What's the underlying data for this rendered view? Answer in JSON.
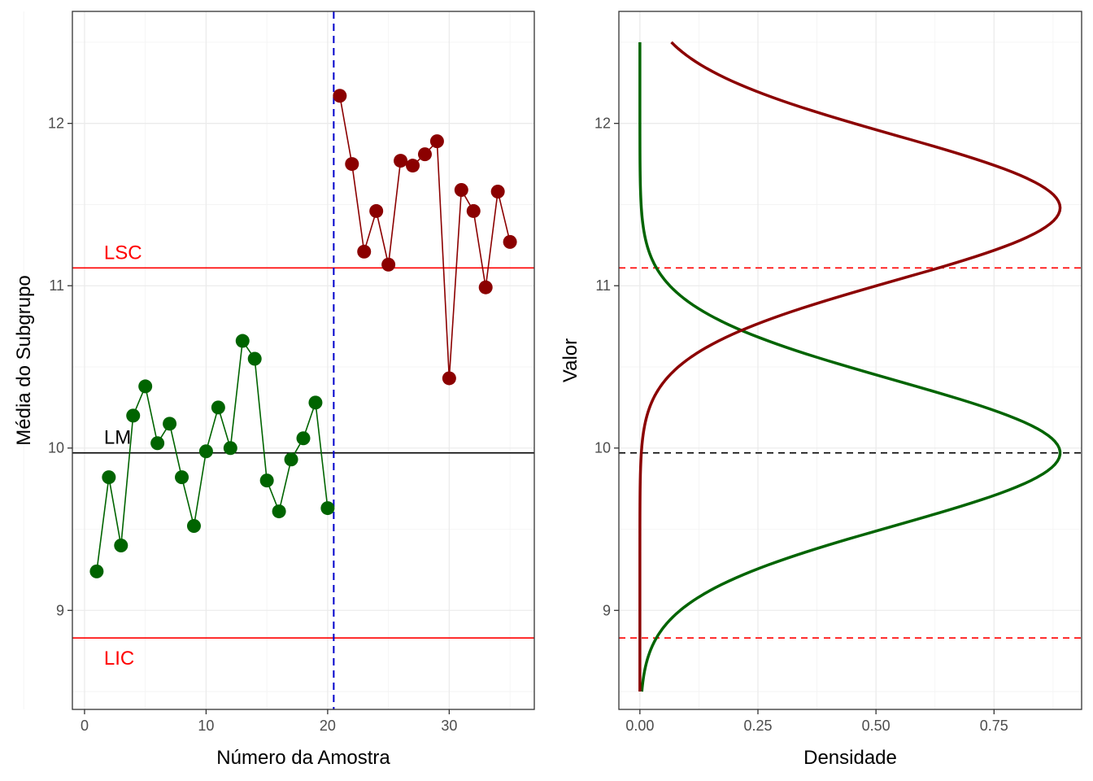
{
  "colors": {
    "phase1": "#006400",
    "phase2": "#8B0000",
    "limits": "#FF0000",
    "center": "#000000",
    "shift_line": "#0000CC"
  },
  "chart_data": [
    {
      "type": "line",
      "title": "",
      "xlabel": "Número da Amostra",
      "ylabel": "Média do Subgrupo",
      "xlim": [
        -1,
        37
      ],
      "ylim": [
        8.39,
        12.69
      ],
      "xticks": [
        0,
        10,
        20,
        30
      ],
      "yticks": [
        9,
        10,
        11,
        12
      ],
      "grid": true,
      "hlines": [
        {
          "label": "LSC",
          "value": 11.11,
          "color": "#FF0000"
        },
        {
          "label": "LM",
          "value": 9.97,
          "color": "#000000"
        },
        {
          "label": "LIC",
          "value": 8.83,
          "color": "#FF0000"
        }
      ],
      "vline": {
        "value": 20.5,
        "style": "dashed",
        "color": "#0000CC"
      },
      "series": [
        {
          "x": [
            1,
            2,
            3,
            4,
            5,
            6,
            7,
            8,
            9,
            10,
            11,
            12,
            13,
            14,
            15,
            16,
            17,
            18,
            19,
            20
          ],
          "values": [
            9.24,
            9.82,
            9.4,
            10.2,
            10.38,
            10.03,
            10.15,
            9.82,
            9.52,
            9.98,
            10.25,
            10.0,
            10.66,
            10.55,
            9.8,
            9.61,
            9.93,
            10.06,
            10.28,
            9.63
          ],
          "color": "#006400"
        },
        {
          "x": [
            21,
            22,
            23,
            24,
            25,
            26,
            27,
            28,
            29,
            30,
            31,
            32,
            33,
            34,
            35
          ],
          "values": [
            12.17,
            11.75,
            11.21,
            11.46,
            11.13,
            11.77,
            11.74,
            11.81,
            11.89,
            10.43,
            11.59,
            11.46,
            10.99,
            11.58,
            11.27
          ],
          "color": "#8B0000"
        }
      ]
    },
    {
      "type": "line",
      "title": "",
      "xlabel": "Densidade",
      "ylabel": "Valor",
      "xlim": [
        -0.0445,
        0.9355
      ],
      "ylim": [
        8.39,
        12.69
      ],
      "xticks": [
        "0.00",
        "0.25",
        "0.50",
        "0.75"
      ],
      "yticks": [
        9,
        10,
        11,
        12
      ],
      "grid": true,
      "hlines": [
        {
          "value": 11.11,
          "style": "dashed",
          "color": "#FF0000"
        },
        {
          "value": 9.97,
          "style": "dashed",
          "color": "#000000"
        },
        {
          "value": 8.83,
          "style": "dashed",
          "color": "#FF0000"
        }
      ],
      "series": [
        {
          "distribution": "normal",
          "mean": 9.97,
          "sd": 0.448,
          "y_range": [
            8.5,
            12.5
          ],
          "peak_density": 0.89,
          "color": "#006400"
        },
        {
          "distribution": "normal",
          "mean": 11.48,
          "sd": 0.448,
          "y_range": [
            8.5,
            12.5
          ],
          "peak_density": 0.89,
          "color": "#8B0000"
        }
      ]
    }
  ]
}
